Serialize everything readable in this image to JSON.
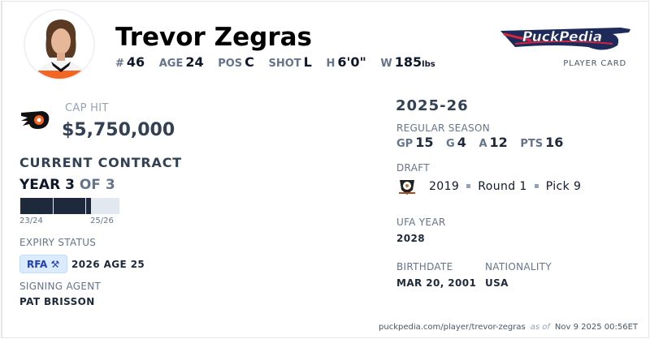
{
  "player": {
    "name": "Trevor Zegras"
  },
  "bio_stats": [
    {
      "key": "#",
      "value": "46"
    },
    {
      "key": "AGE",
      "value": "24"
    },
    {
      "key": "POS",
      "value": "C"
    },
    {
      "key": "SHOT",
      "value": "L"
    },
    {
      "key": "H",
      "value": "6'0\""
    },
    {
      "key": "W",
      "value": "185",
      "unit": "lbs"
    }
  ],
  "brand": {
    "logo_text": "PuckPedia",
    "subtitle": "PLAYER CARD"
  },
  "team_logo": "flyers-logo",
  "cap_hit": {
    "label": "CAP HIT",
    "value": "$5,750,000"
  },
  "contract": {
    "title": "CURRENT CONTRACT",
    "year_label": "YEAR 3",
    "of_label": "OF 3",
    "progress_years_elapsed": 2.17,
    "progress_years_total": 3,
    "start": "23/24",
    "end": "25/26"
  },
  "expiry": {
    "label": "EXPIRY STATUS",
    "badge": "RFA",
    "badge_icon": "gavel-icon",
    "detail": "2026 AGE 25"
  },
  "agent": {
    "label": "SIGNING AGENT",
    "value": "PAT BRISSON"
  },
  "season": {
    "title": "2025-26",
    "label": "REGULAR SEASON",
    "stats": [
      {
        "key": "GP",
        "value": "15"
      },
      {
        "key": "G",
        "value": "4"
      },
      {
        "key": "A",
        "value": "12"
      },
      {
        "key": "PTS",
        "value": "16"
      }
    ]
  },
  "draft": {
    "label": "DRAFT",
    "team_logo": "ducks-logo",
    "year": "2019",
    "round": "Round 1",
    "pick": "Pick 9"
  },
  "ufa": {
    "label": "UFA YEAR",
    "value": "2028"
  },
  "birthdate": {
    "label": "BIRTHDATE",
    "value": "MAR 20, 2001"
  },
  "nationality": {
    "label": "NATIONALITY",
    "value": "USA"
  },
  "footer": {
    "url": "puckpedia.com/player/trevor-zegras",
    "as_of": "as of",
    "timestamp": "Nov 9 2025 00:56ET"
  }
}
